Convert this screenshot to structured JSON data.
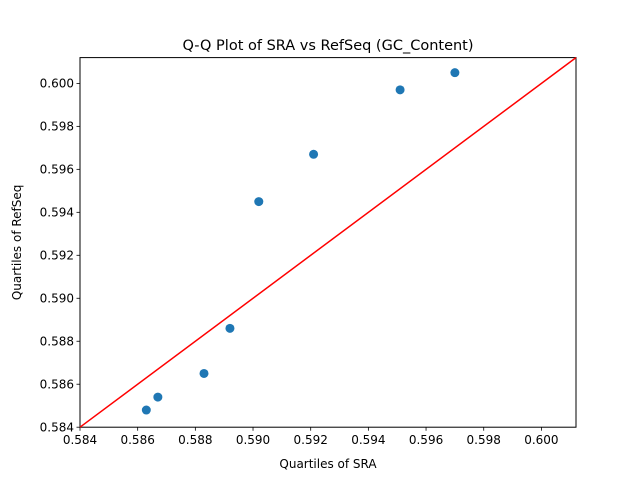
{
  "chart_data": {
    "type": "scatter",
    "title": "Q-Q Plot of SRA vs RefSeq (GC_Content)",
    "xlabel": "Quartiles of SRA",
    "ylabel": "Quartiles of RefSeq",
    "xlim": [
      0.584,
      0.6012
    ],
    "ylim": [
      0.584,
      0.6012
    ],
    "xticks": [
      "0.584",
      "0.586",
      "0.588",
      "0.590",
      "0.592",
      "0.594",
      "0.596",
      "0.598",
      "0.600"
    ],
    "yticks": [
      "0.584",
      "0.586",
      "0.588",
      "0.590",
      "0.592",
      "0.594",
      "0.596",
      "0.598",
      "0.600"
    ],
    "grid": false,
    "points": [
      {
        "x": 0.5863,
        "y": 0.5848
      },
      {
        "x": 0.5867,
        "y": 0.5854
      },
      {
        "x": 0.5883,
        "y": 0.5865
      },
      {
        "x": 0.5892,
        "y": 0.5886
      },
      {
        "x": 0.5902,
        "y": 0.5945
      },
      {
        "x": 0.5921,
        "y": 0.5967
      },
      {
        "x": 0.5951,
        "y": 0.5997
      },
      {
        "x": 0.597,
        "y": 0.6005
      }
    ],
    "reference_line": {
      "x": [
        0.584,
        0.6012
      ],
      "y": [
        0.584,
        0.6012
      ]
    },
    "colors": {
      "points": "#1f77b4",
      "line": "#ff0000"
    }
  }
}
